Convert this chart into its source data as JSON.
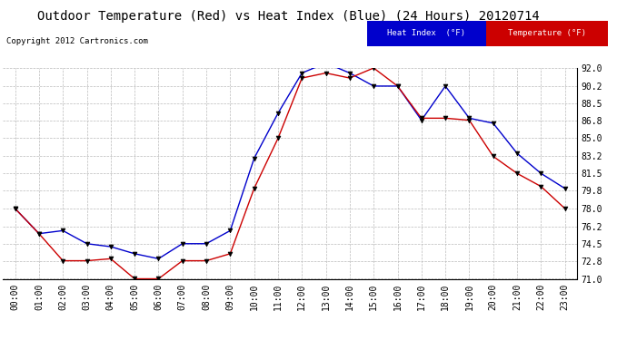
{
  "title": "Outdoor Temperature (Red) vs Heat Index (Blue) (24 Hours) 20120714",
  "copyright": "Copyright 2012 Cartronics.com",
  "x_labels": [
    "00:00",
    "01:00",
    "02:00",
    "03:00",
    "04:00",
    "05:00",
    "06:00",
    "07:00",
    "08:00",
    "09:00",
    "10:00",
    "11:00",
    "12:00",
    "13:00",
    "14:00",
    "15:00",
    "16:00",
    "17:00",
    "18:00",
    "19:00",
    "20:00",
    "21:00",
    "22:00",
    "23:00"
  ],
  "temperature": [
    78.0,
    75.5,
    72.8,
    72.8,
    73.0,
    71.0,
    71.0,
    72.8,
    72.8,
    73.5,
    80.0,
    85.0,
    91.0,
    91.5,
    91.0,
    92.0,
    90.2,
    87.0,
    87.0,
    86.8,
    83.2,
    81.5,
    80.2,
    78.0
  ],
  "heat_index": [
    78.0,
    75.5,
    75.8,
    74.5,
    74.2,
    73.5,
    73.0,
    74.5,
    74.5,
    75.8,
    83.0,
    87.5,
    91.5,
    92.5,
    91.5,
    90.2,
    90.2,
    86.8,
    90.2,
    87.0,
    86.5,
    83.5,
    81.5,
    80.0
  ],
  "ylim": [
    71.0,
    92.0
  ],
  "yticks": [
    71.0,
    72.8,
    74.5,
    76.2,
    78.0,
    79.8,
    81.5,
    83.2,
    85.0,
    86.8,
    88.5,
    90.2,
    92.0
  ],
  "temp_color": "#cc0000",
  "heat_color": "#0000cc",
  "marker_color": "#000000",
  "bg_color": "#ffffff",
  "grid_color": "#bbbbbb",
  "title_fontsize": 10,
  "copyright_fontsize": 6.5,
  "tick_fontsize": 7,
  "legend_heat_bg": "#0000cc",
  "legend_temp_bg": "#cc0000"
}
